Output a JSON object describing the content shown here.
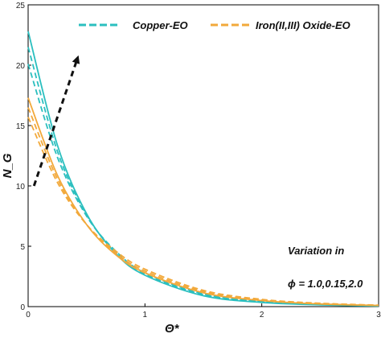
{
  "chart_data": {
    "type": "line",
    "xlabel": "Θ*",
    "ylabel": "N_G",
    "xlim": [
      0,
      3
    ],
    "ylim": [
      0,
      25
    ],
    "x_ticks": [
      0,
      1,
      2,
      3
    ],
    "y_ticks": [
      0,
      5,
      10,
      15,
      20,
      25
    ],
    "grid": false,
    "legend_position": "top",
    "legend": [
      "Copper-EO",
      "Iron(II,III) Oxide-EO"
    ],
    "annotation": {
      "line1": "Variation in",
      "line2": "ϕ = 1.0,0.15,2.0"
    },
    "arrow": {
      "from": [
        0.05,
        10
      ],
      "to": [
        0.42,
        20.5
      ]
    },
    "colors": {
      "copper": "#2bbfbf",
      "iron": "#f2a93b",
      "arrow": "#111111"
    },
    "series": [
      {
        "name": "Copper-EO",
        "group": "copper",
        "dashed": false,
        "x": [
          0,
          0.25,
          0.5,
          0.75,
          1.0,
          1.5,
          2.0,
          2.5,
          3.0
        ],
        "y": [
          22.8,
          13.4,
          7.7,
          4.4,
          2.6,
          0.9,
          0.35,
          0.15,
          0.05
        ]
      },
      {
        "name": "Copper-EO",
        "group": "copper",
        "dashed": true,
        "x": [
          0,
          0.25,
          0.5,
          0.75,
          1.0,
          1.5,
          2.0,
          2.5,
          3.0
        ],
        "y": [
          21.5,
          12.9,
          7.6,
          4.5,
          2.7,
          1.0,
          0.4,
          0.17,
          0.06
        ]
      },
      {
        "name": "Copper-EO",
        "group": "copper",
        "dashed": true,
        "x": [
          0,
          0.25,
          0.5,
          0.75,
          1.0,
          1.5,
          2.0,
          2.5,
          3.0
        ],
        "y": [
          20.1,
          12.4,
          7.5,
          4.6,
          2.8,
          1.05,
          0.45,
          0.19,
          0.07
        ]
      },
      {
        "name": "Iron(II,III) Oxide-EO",
        "group": "iron",
        "dashed": false,
        "x": [
          0,
          0.25,
          0.5,
          0.75,
          1.0,
          1.5,
          2.0,
          2.5,
          3.0
        ],
        "y": [
          17.3,
          10.9,
          6.8,
          4.3,
          2.8,
          1.15,
          0.5,
          0.22,
          0.09
        ]
      },
      {
        "name": "Iron(II,III) Oxide-EO",
        "group": "iron",
        "dashed": true,
        "x": [
          0,
          0.25,
          0.5,
          0.75,
          1.0,
          1.5,
          2.0,
          2.5,
          3.0
        ],
        "y": [
          16.5,
          10.6,
          6.8,
          4.45,
          2.95,
          1.25,
          0.55,
          0.25,
          0.11
        ]
      },
      {
        "name": "Iron(II,III) Oxide-EO",
        "group": "iron",
        "dashed": true,
        "x": [
          0,
          0.25,
          0.5,
          0.75,
          1.0,
          1.5,
          2.0,
          2.5,
          3.0
        ],
        "y": [
          15.7,
          10.3,
          6.8,
          4.6,
          3.1,
          1.35,
          0.6,
          0.28,
          0.12
        ]
      }
    ]
  }
}
